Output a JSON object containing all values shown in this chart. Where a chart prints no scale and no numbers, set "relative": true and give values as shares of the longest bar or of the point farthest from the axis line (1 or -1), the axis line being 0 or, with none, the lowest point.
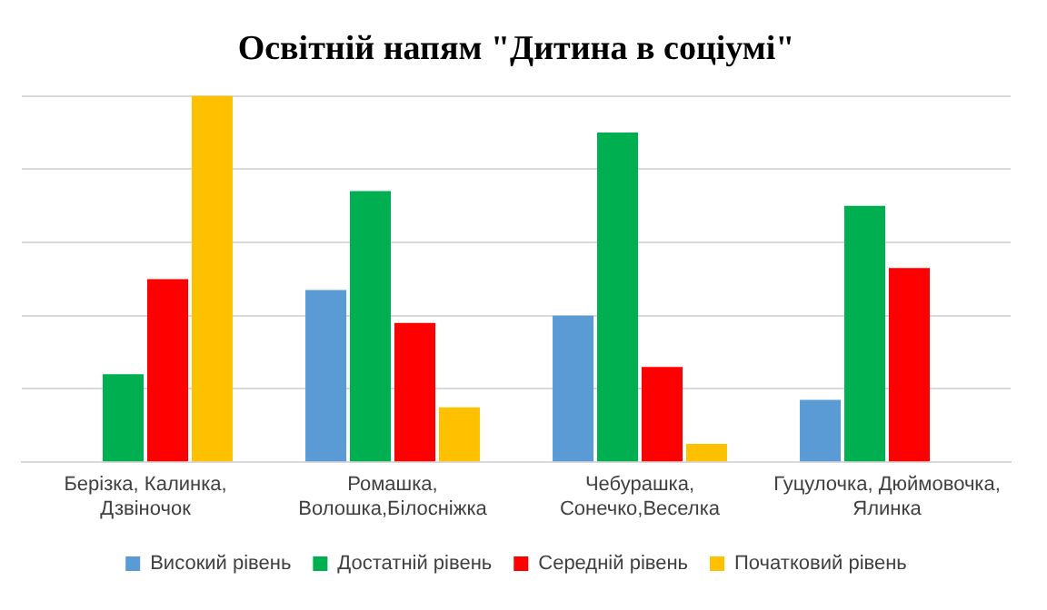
{
  "chart_data": {
    "type": "bar",
    "title": "Освітній напям \"Дитина в соціумі\"",
    "relative": true,
    "grid": "y",
    "legend": "bottom",
    "categories": [
      "Берізка, Калинка, Дзвіночок",
      "Ромашка, Волошка,Білосніжка",
      "Чебурашка, Сонечко,Веселка",
      "Гуцулочка, Дюймовочка, Ялинка"
    ],
    "series": [
      {
        "name": "Високий рівень",
        "color": "#5b9bd5",
        "values": [
          0,
          0.47,
          0.4,
          0.17
        ]
      },
      {
        "name": "Достатній рівень",
        "color": "#00b050",
        "values": [
          0.24,
          0.74,
          0.9,
          0.7
        ]
      },
      {
        "name": "Середній рівень",
        "color": "#ff0000",
        "values": [
          0.5,
          0.38,
          0.26,
          0.53
        ]
      },
      {
        "name": "Початковий рівень",
        "color": "#ffc000",
        "values": [
          1,
          0.15,
          0.05,
          0
        ]
      }
    ]
  }
}
